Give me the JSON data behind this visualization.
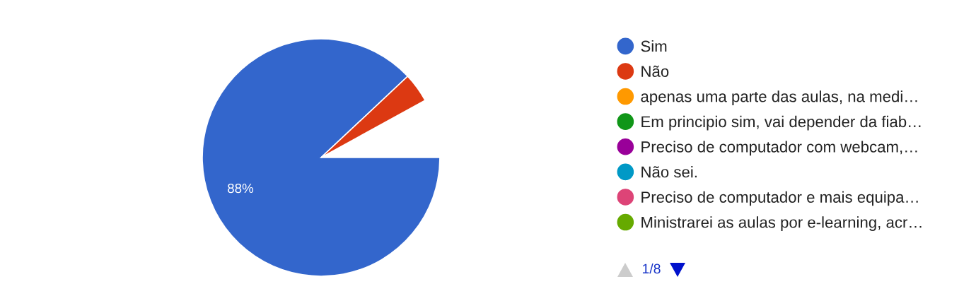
{
  "chart_data": {
    "type": "pie",
    "categories": [
      "Sim",
      "Não",
      "apenas uma parte das aulas, na medi…",
      "Em principio sim, vai depender da fiab…",
      "Preciso de computador com webcam,…",
      "Não sei.",
      "Preciso de computador e mais equipa…",
      "Ministrarei as aulas por e-learning, acr…"
    ],
    "values": [
      88,
      4,
      null,
      null,
      null,
      null,
      null,
      null
    ],
    "colors": [
      "#3366cc",
      "#dc3912",
      "#ff9900",
      "#109618",
      "#990099",
      "#0099c6",
      "#dd4477",
      "#66aa00"
    ],
    "value_labels": [
      "88%",
      null,
      null,
      null,
      null,
      null,
      null,
      null
    ],
    "legend": "right",
    "annotations": [
      "1/8"
    ]
  }
}
